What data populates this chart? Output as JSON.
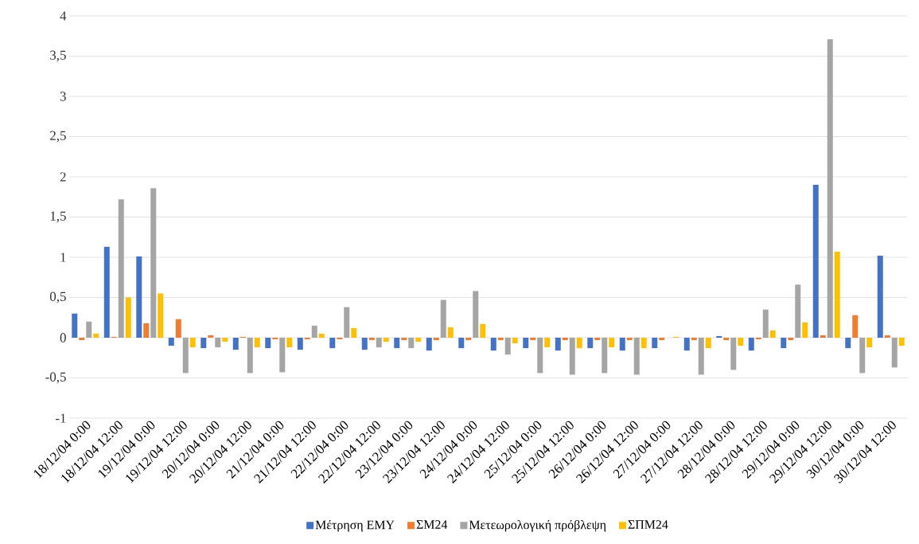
{
  "chart_data": {
    "type": "bar",
    "categories": [
      "18/12/04 0:00",
      "18/12/04 12:00",
      "19/12/04 0:00",
      "19/12/04 12:00",
      "20/12/04 0:00",
      "20/12/04 12:00",
      "21/12/04 0:00",
      "21/12/04 12:00",
      "22/12/04 0:00",
      "22/12/04 12:00",
      "23/12/04 0:00",
      "23/12/04 12:00",
      "24/12/04 0:00",
      "24/12/04 12:00",
      "25/12/04 0:00",
      "25/12/04 12:00",
      "26/12/04 0:00",
      "26/12/04 12:00",
      "27/12/04 0:00",
      "27/12/04 12:00",
      "28/12/04 0:00",
      "28/12/04 12:00",
      "29/12/04 0:00",
      "29/12/04 12:00",
      "30/12/04 0:00",
      "30/12/04 12:00"
    ],
    "series": [
      {
        "name": "Μέτρηση ΕΜΥ",
        "color": "#4472c4",
        "values": [
          0.3,
          1.13,
          1.01,
          -0.1,
          -0.13,
          -0.15,
          -0.13,
          -0.15,
          -0.13,
          -0.15,
          -0.13,
          -0.16,
          -0.13,
          -0.16,
          -0.13,
          -0.16,
          -0.13,
          -0.16,
          -0.13,
          -0.16,
          0.02,
          -0.16,
          -0.13,
          1.9,
          -0.13,
          1.02
        ]
      },
      {
        "name": "ΣΜ24",
        "color": "#ed7d31",
        "values": [
          -0.03,
          0.01,
          0.18,
          0.23,
          0.03,
          0.01,
          -0.02,
          -0.02,
          -0.02,
          -0.03,
          -0.03,
          -0.03,
          -0.03,
          -0.03,
          -0.03,
          -0.03,
          -0.03,
          -0.03,
          -0.03,
          -0.03,
          -0.03,
          -0.02,
          -0.03,
          0.03,
          0.28,
          0.03
        ]
      },
      {
        "name": "Μετεωρολογική πρόβλεψη",
        "color": "#a5a5a5",
        "values": [
          0.2,
          1.72,
          1.86,
          -0.44,
          -0.12,
          -0.44,
          -0.43,
          0.15,
          0.38,
          -0.12,
          -0.13,
          0.47,
          0.58,
          -0.21,
          -0.44,
          -0.46,
          -0.44,
          -0.46,
          null,
          -0.46,
          -0.4,
          0.35,
          0.66,
          3.71,
          -0.44,
          -0.37
        ]
      },
      {
        "name": "ΣΠΜ24",
        "color": "#ffc000",
        "values": [
          0.05,
          0.5,
          0.55,
          -0.12,
          -0.05,
          -0.12,
          -0.12,
          0.05,
          0.12,
          -0.05,
          -0.05,
          0.13,
          0.17,
          -0.07,
          -0.12,
          -0.13,
          -0.12,
          -0.13,
          0.01,
          -0.13,
          -0.1,
          0.09,
          0.19,
          1.07,
          -0.12,
          -0.1
        ]
      }
    ],
    "ylim": [
      -1,
      4
    ],
    "yticks": [
      -1,
      {
        "value": -0.5,
        "label": "-0,5"
      },
      0,
      {
        "value": 0.5,
        "label": "0,5"
      },
      1,
      {
        "value": 1.5,
        "label": "1,5"
      },
      2,
      {
        "value": 2.5,
        "label": "2,5"
      },
      3,
      {
        "value": 3.5,
        "label": "3,5"
      },
      4
    ],
    "grid": "y",
    "legend": "bottom"
  }
}
